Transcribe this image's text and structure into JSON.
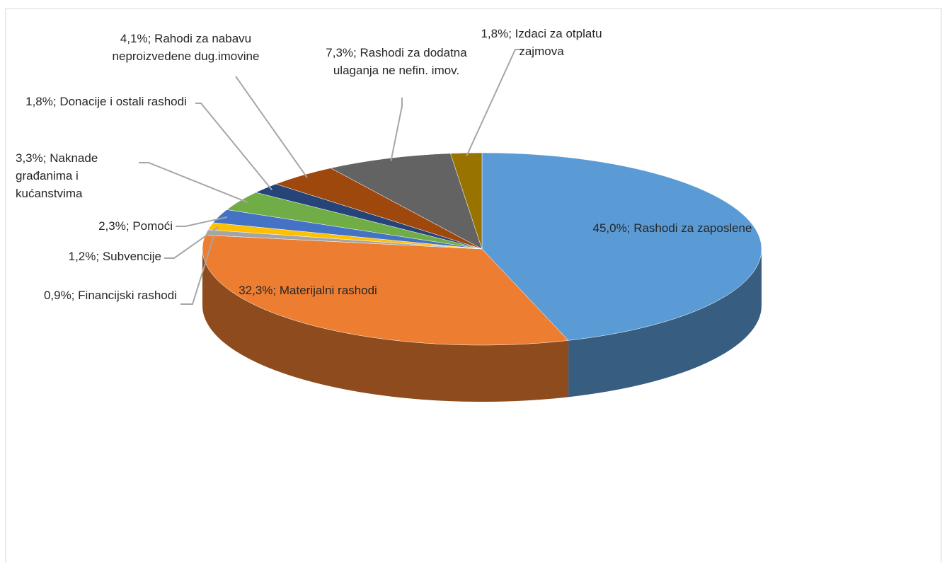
{
  "chart_data": {
    "type": "pie3d",
    "categories": [
      "Rashodi za zaposlene",
      "Materijalni rashodi",
      "Financijski rashodi",
      "Subvencije",
      "Pomoći",
      "Naknade građanima i kućanstvima",
      "Donacije i ostali rashodi",
      "Rahodi za nabavu neproizvedene dug.imovine",
      "Rashodi za dodatna ulaganja ne nefin. imov.",
      "Izdaci za otplatu zajmova"
    ],
    "values": [
      45.0,
      32.3,
      0.9,
      1.2,
      2.3,
      3.3,
      1.8,
      4.1,
      7.3,
      1.8
    ],
    "value_labels": [
      "45,0%;",
      "32,3%;",
      "0,9%;",
      "1,2%;",
      "2,3%;",
      "3,3%;",
      "1,8%;",
      "4,1%;",
      "7,3%;",
      "1,8%;"
    ],
    "colors": [
      "#5b9bd5",
      "#ed7d31",
      "#a5a5a5",
      "#ffc000",
      "#4472c4",
      "#70ad47",
      "#264478",
      "#9e480e",
      "#636363",
      "#997300"
    ]
  }
}
